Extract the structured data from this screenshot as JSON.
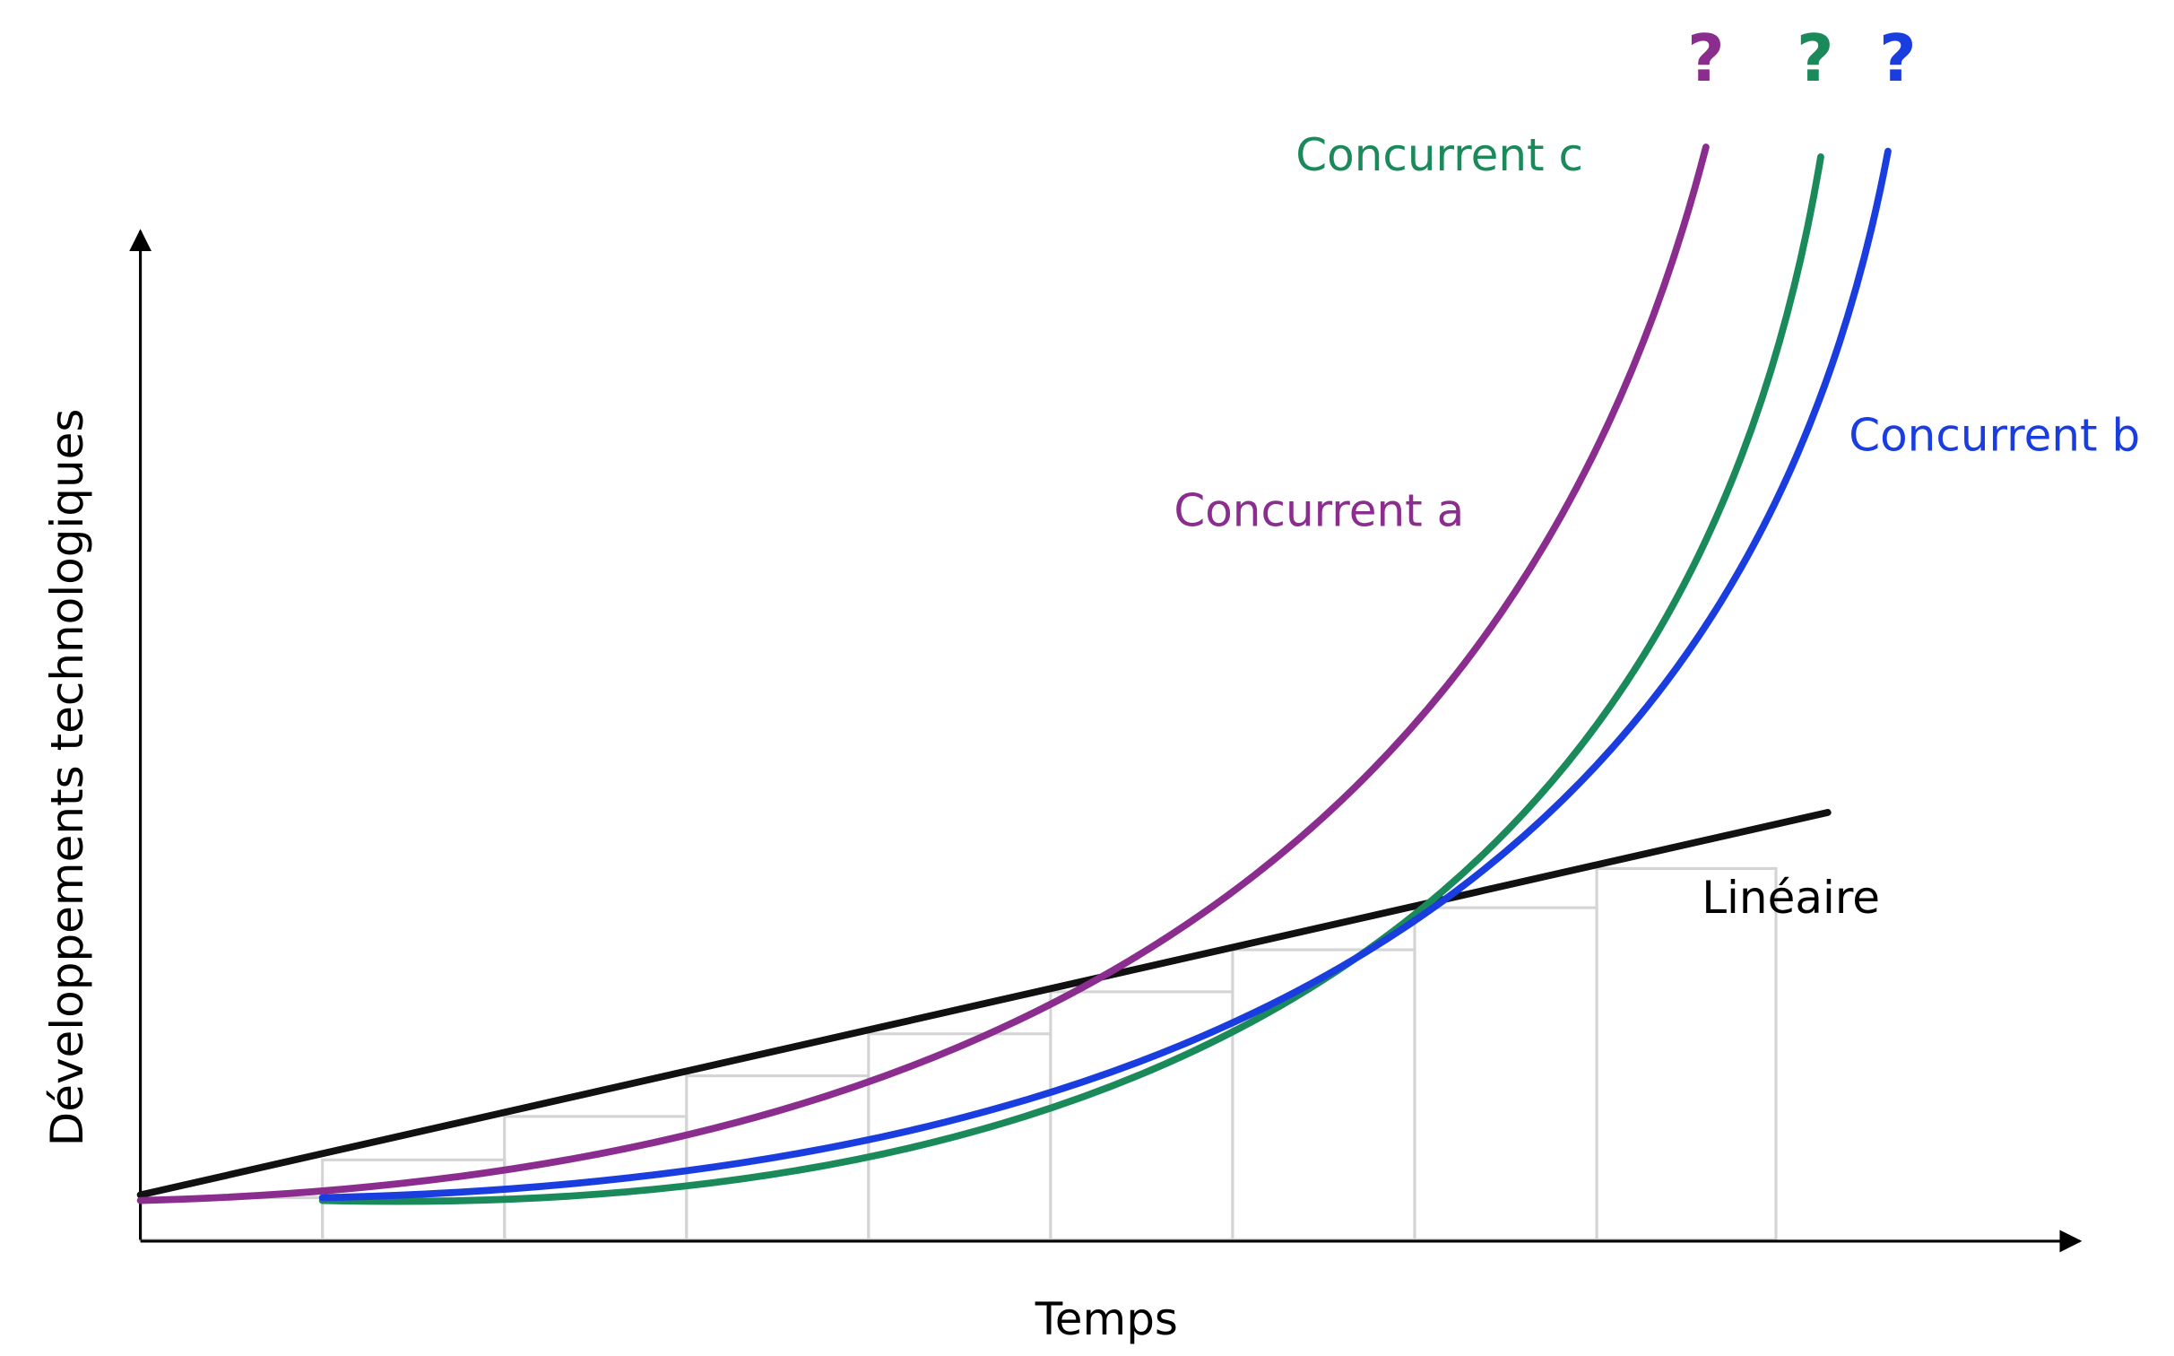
{
  "y_axis_label": "Développements technologiques",
  "x_axis_label": "Temps",
  "linear_label": "Linéaire",
  "curves": [
    {
      "label": "Concurrent a",
      "end_label": "?"
    },
    {
      "label": "Concurrent c",
      "end_label": "?"
    },
    {
      "label": "Concurrent b",
      "end_label": "?"
    }
  ]
}
